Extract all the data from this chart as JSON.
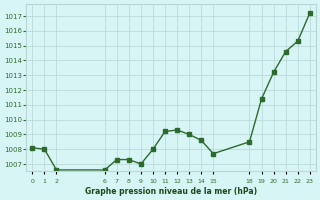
{
  "x": [
    0,
    1,
    2,
    6,
    7,
    8,
    9,
    10,
    11,
    12,
    13,
    14,
    15,
    18,
    19,
    20,
    21,
    22,
    23
  ],
  "y": [
    1008.1,
    1008.0,
    1006.6,
    1006.6,
    1007.3,
    1007.3,
    1007.0,
    1008.0,
    1009.2,
    1009.3,
    1009.0,
    1008.6,
    1007.7,
    1008.5,
    1011.4,
    1013.2,
    1014.6,
    1015.3,
    1017.2
  ],
  "x_ticks": [
    0,
    1,
    2,
    6,
    7,
    8,
    9,
    10,
    11,
    12,
    13,
    14,
    15,
    18,
    19,
    20,
    21,
    22,
    23
  ],
  "y_ticks": [
    1007,
    1008,
    1009,
    1010,
    1011,
    1012,
    1013,
    1014,
    1015,
    1016,
    1017
  ],
  "ylim": [
    1006.5,
    1017.8
  ],
  "xlim": [
    -0.5,
    23.5
  ],
  "line_color": "#2d6a2d",
  "marker_color": "#2d6a2d",
  "bg_color": "#d8f5f5",
  "grid_color": "#b8d4d4",
  "xlabel": "Graphe pression niveau de la mer (hPa)",
  "xlabel_color": "#1a4a1a"
}
